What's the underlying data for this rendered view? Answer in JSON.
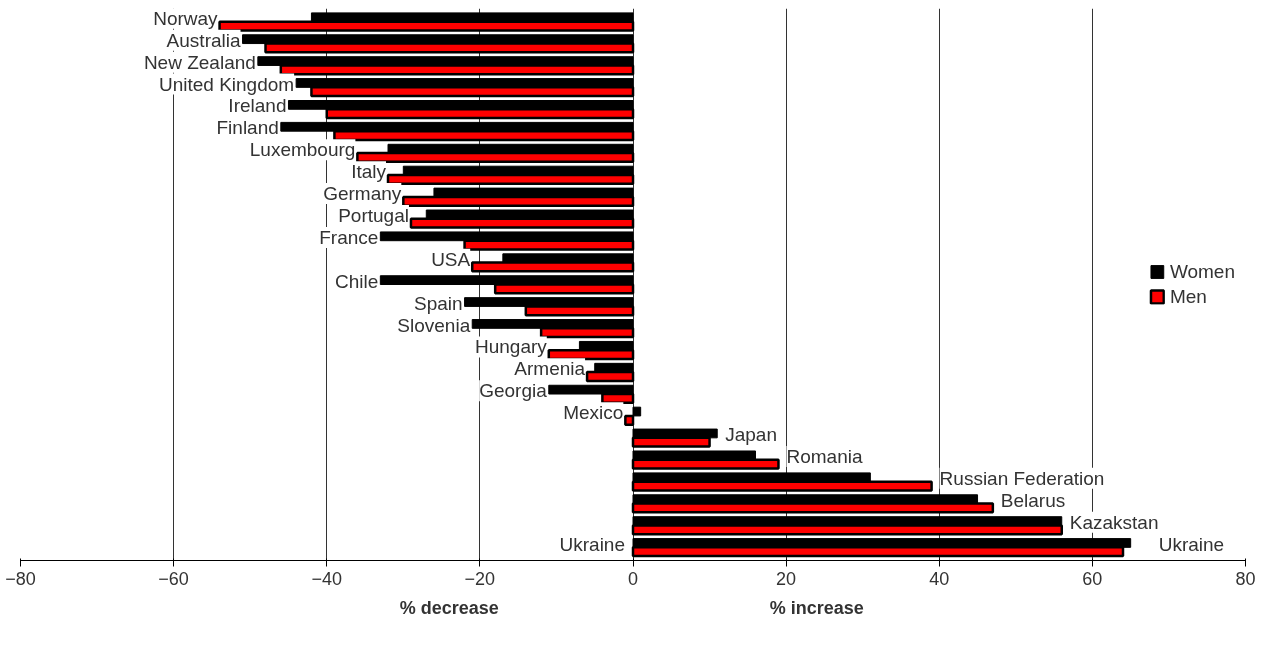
{
  "chart_data": {
    "type": "bar",
    "orientation": "horizontal",
    "categories": [
      "Norway",
      "Australia",
      "New Zealand",
      "United Kingdom",
      "Ireland",
      "Finland",
      "Luxembourg",
      "Italy",
      "Germany",
      "Portugal",
      "France",
      "USA",
      "Chile",
      "Spain",
      "Slovenia",
      "Hungary",
      "Armenia",
      "Georgia",
      "Mexico",
      "Japan",
      "Romania",
      "Russian Federation",
      "Belarus",
      "Kazakstan",
      "Ukraine"
    ],
    "series": [
      {
        "name": "Women",
        "color": "#000000",
        "values": [
          -42,
          -51,
          -49,
          -44,
          -45,
          -46,
          -32,
          -30,
          -26,
          -27,
          -33,
          -17,
          -33,
          -22,
          -21,
          -7,
          -5,
          -11,
          1,
          11,
          16,
          31,
          45,
          56,
          65
        ]
      },
      {
        "name": "Men",
        "color": "#ff0000",
        "values": [
          -54,
          -48,
          -46,
          -42,
          -40,
          -39,
          -36,
          -32,
          -30,
          -29,
          -22,
          -21,
          -18,
          -14,
          -12,
          -11,
          -6,
          -4,
          -1,
          10,
          19,
          39,
          47,
          56,
          64
        ]
      }
    ],
    "xlim": [
      -80,
      80
    ],
    "xticks": [
      -80,
      -60,
      -40,
      -20,
      0,
      20,
      40,
      60,
      80
    ],
    "grid": "x",
    "legend": "right",
    "annotations": [
      "% decrease",
      "% increase",
      "Ukraine"
    ]
  }
}
